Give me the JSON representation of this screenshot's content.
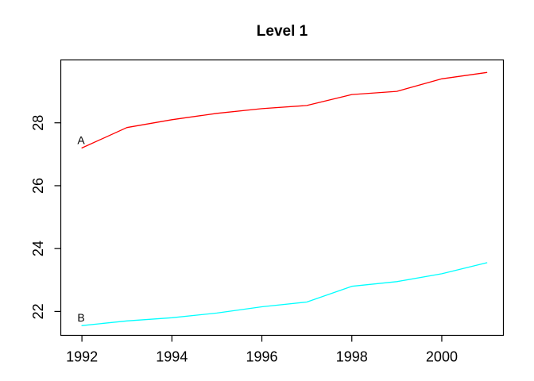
{
  "figure": {
    "background": "#ffffff",
    "axis_color": "#000000",
    "text_color": "#000000"
  },
  "chart_data": {
    "type": "line",
    "title": "Level 1",
    "xlabel": "",
    "ylabel": "",
    "x": [
      1992,
      1993,
      1994,
      1995,
      1996,
      1997,
      1998,
      1999,
      2000,
      2001
    ],
    "series": [
      {
        "name": "A",
        "color": "#ff0000",
        "values": [
          27.2,
          27.85,
          28.1,
          28.3,
          28.45,
          28.55,
          28.9,
          29.0,
          29.4,
          29.6
        ]
      },
      {
        "name": "B",
        "color": "#00ffff",
        "values": [
          21.55,
          21.7,
          21.8,
          21.95,
          22.15,
          22.3,
          22.8,
          22.95,
          23.2,
          23.55
        ]
      }
    ],
    "x_ticks": [
      1992,
      1994,
      1996,
      1998,
      2000
    ],
    "y_ticks": [
      22,
      24,
      26,
      28
    ],
    "xlim": [
      1991.53,
      2001.37
    ],
    "ylim": [
      21.24,
      30.0
    ],
    "grid": false,
    "legend": "inline-start-labels"
  }
}
